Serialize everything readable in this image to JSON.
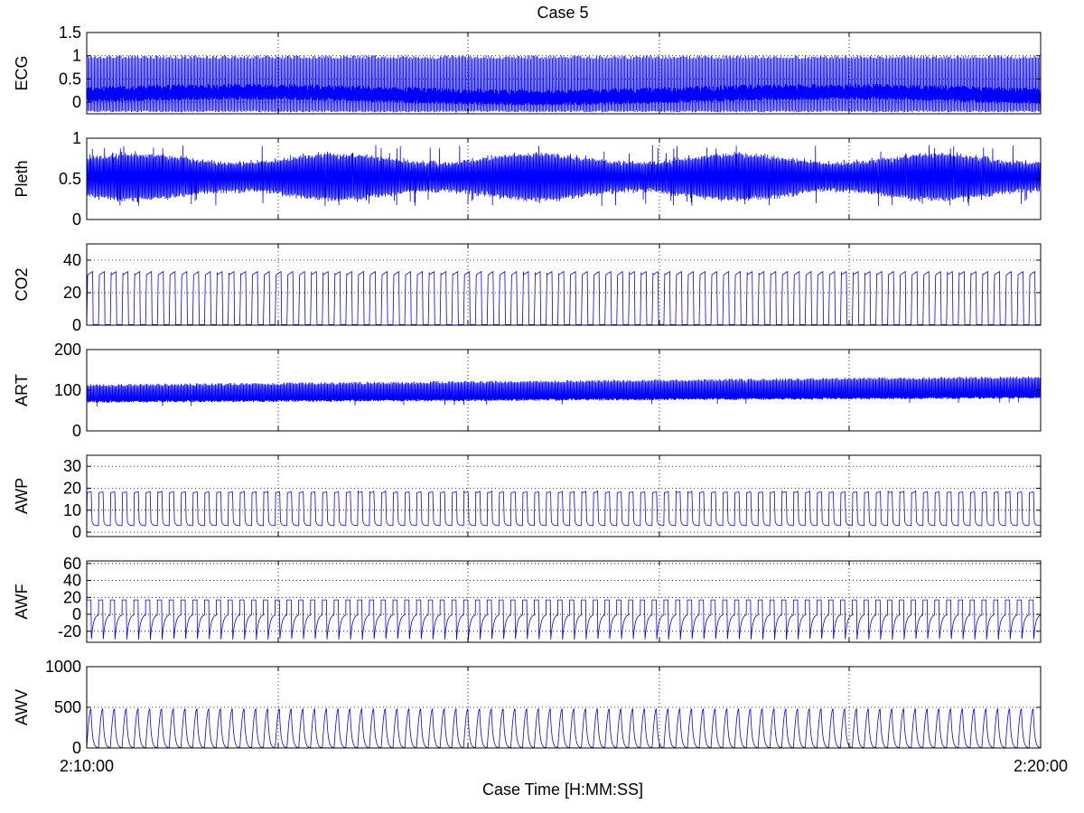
{
  "title": "Case 5",
  "xlabel": "Case Time [H:MM:SS]",
  "x_tick_labels": [
    "2:10:00",
    "2:20:00"
  ],
  "trace_color": "#0000ff",
  "chart_data": [
    {
      "type": "line",
      "ylabel": "ECG",
      "ylim": [
        -0.25,
        1.5
      ],
      "yticks": [
        0,
        0.5,
        1,
        1.5
      ],
      "ytick_labels": [
        "0",
        "0.5",
        "1",
        "1.5"
      ],
      "grid": "dotted",
      "series": [
        {
          "kind": "ecg",
          "beats_per_window": 750,
          "baseline": 0.05,
          "peak": 1.0,
          "trough": -0.18
        }
      ]
    },
    {
      "type": "line",
      "ylabel": "Pleth",
      "ylim": [
        0,
        1
      ],
      "yticks": [
        0,
        0.5,
        1
      ],
      "ytick_labels": [
        "0",
        "0.5",
        "1"
      ],
      "grid": "dotted",
      "series": [
        {
          "kind": "pleth",
          "beats_per_window": 750,
          "min": 0.25,
          "max": 0.8
        }
      ]
    },
    {
      "type": "line",
      "ylabel": "CO2",
      "ylim": [
        0,
        50
      ],
      "yticks": [
        0,
        20,
        40
      ],
      "ytick_labels": [
        "0",
        "20",
        "40"
      ],
      "grid": "dotted",
      "series": [
        {
          "kind": "capno",
          "breaths_per_window": 81,
          "low": 0.3,
          "high": 33
        }
      ]
    },
    {
      "type": "line",
      "ylabel": "ART",
      "ylim": [
        0,
        200
      ],
      "yticks": [
        0,
        100,
        200
      ],
      "ytick_labels": [
        "0",
        "100",
        "200"
      ],
      "grid": "dotted",
      "series": [
        {
          "kind": "art",
          "beats_per_window": 750,
          "dia_start": 72,
          "dia_end": 82,
          "sys_start": 112,
          "sys_end": 132
        }
      ]
    },
    {
      "type": "line",
      "ylabel": "AWP",
      "ylim": [
        -2,
        35
      ],
      "yticks": [
        0,
        10,
        20,
        30
      ],
      "ytick_labels": [
        "0",
        "10",
        "20",
        "30"
      ],
      "grid": "dotted",
      "series": [
        {
          "kind": "awp",
          "breaths_per_window": 81,
          "peep": 3,
          "peak": 19
        }
      ]
    },
    {
      "type": "line",
      "ylabel": "AWF",
      "ylim": [
        -33,
        63
      ],
      "yticks": [
        -20,
        0,
        20,
        40,
        60
      ],
      "ytick_labels": [
        "-20",
        "0",
        "20",
        "40",
        "60"
      ],
      "grid": "dotted",
      "series": [
        {
          "kind": "awf",
          "breaths_per_window": 81,
          "insp": 17,
          "exp_min": -30
        }
      ]
    },
    {
      "type": "line",
      "ylabel": "AWV",
      "ylim": [
        0,
        1000
      ],
      "yticks": [
        0,
        500,
        1000
      ],
      "ytick_labels": [
        "0",
        "500",
        "1000"
      ],
      "grid": "dotted",
      "series": [
        {
          "kind": "awv",
          "breaths_per_window": 81,
          "tidal": 480
        }
      ]
    }
  ]
}
